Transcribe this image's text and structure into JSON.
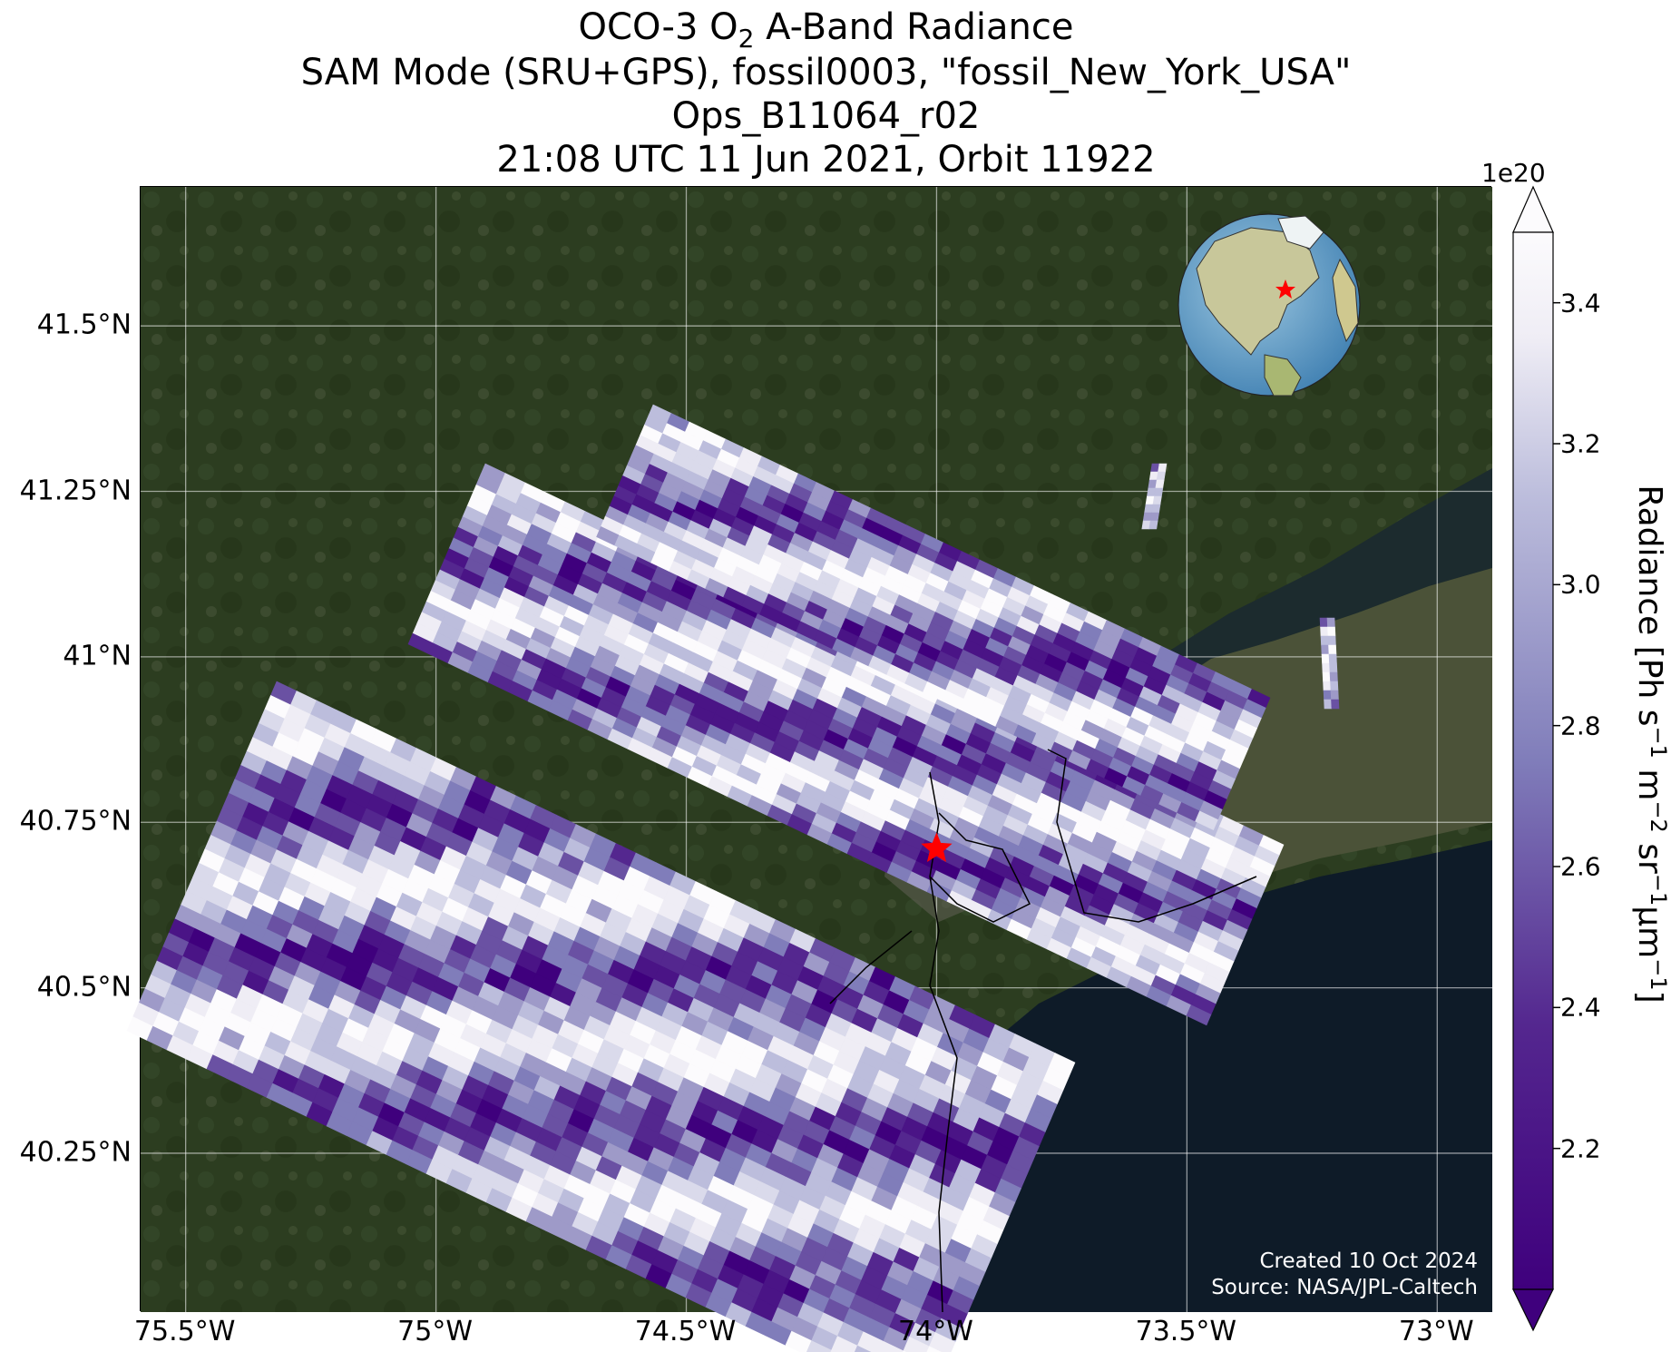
{
  "title": {
    "line1_pre": "OCO-3 O",
    "line1_sub": "2",
    "line1_post": " A-Band Radiance",
    "line2": "SAM Mode (SRU+GPS), fossil0003, \"fossil_New_York_USA\"",
    "line3": "Ops_B11064_r02",
    "line4": "21:08 UTC 11 Jun 2021, Orbit 11922"
  },
  "map": {
    "lat_ticks": [
      "41.5°N",
      "41.25°N",
      "41°N",
      "40.75°N",
      "40.5°N",
      "40.25°N"
    ],
    "lon_ticks": [
      "75.5°W",
      "75°W",
      "74.5°W",
      "74°W",
      "73.5°W",
      "73°W"
    ],
    "extent": {
      "lon_min": -75.59,
      "lon_max": -72.89,
      "lat_min": 40.01,
      "lat_max": 41.71
    },
    "target": {
      "lon": -74.0,
      "lat": 40.71,
      "marker": "red-star-icon"
    },
    "colors": {
      "land": "#2c3d20",
      "water": "#0e1b28",
      "star": "#ff0000"
    },
    "credit_line1": "Created 10 Oct 2024",
    "credit_line2": "Source: NASA/JPL-Caltech"
  },
  "colorbar": {
    "exponent": "1e20",
    "label": "Radiance [Ph s⁻¹ m⁻² sr⁻¹μm⁻¹]",
    "ticks": [
      "2.2",
      "2.4",
      "2.6",
      "2.8",
      "3.0",
      "3.2",
      "3.4"
    ],
    "tick_values": [
      2.2,
      2.4,
      2.6,
      2.8,
      3.0,
      3.2,
      3.4
    ],
    "range": [
      2.0,
      3.5
    ],
    "colormap": "Purples_r",
    "extend": "both"
  },
  "inset_globe": {
    "center": "North America",
    "marker": "red-star-icon"
  }
}
